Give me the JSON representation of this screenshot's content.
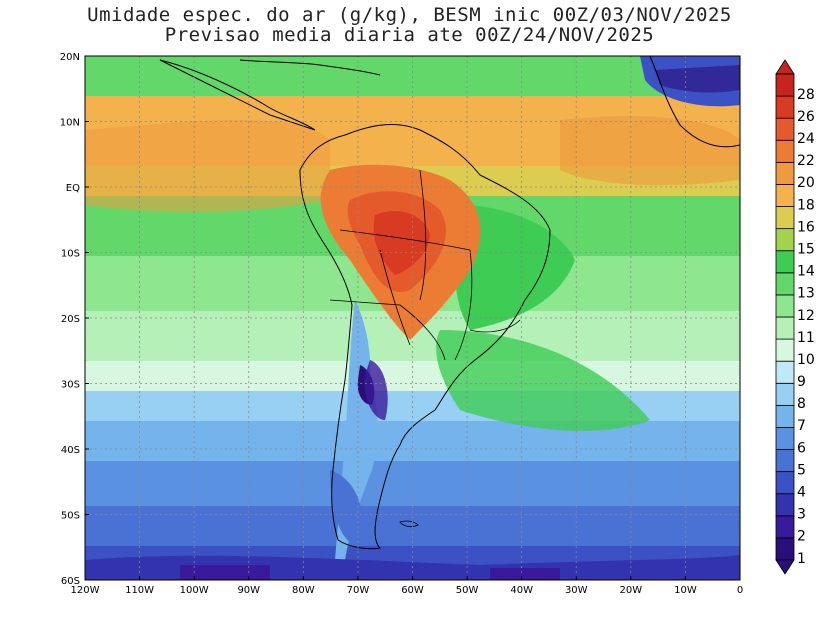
{
  "title_line1": "Umidade espec. do ar (g/kg), BESM inic 00Z/03/NOV/2025",
  "title_line2": "Previsao media diaria ate 00Z/24/NOV/2025",
  "lat_labels": [
    "20N",
    "10N",
    "EQ",
    "10S",
    "20S",
    "30S",
    "40S",
    "50S",
    "60S"
  ],
  "lon_labels": [
    "120W",
    "110W",
    "100W",
    "90W",
    "80W",
    "70W",
    "60W",
    "50W",
    "40W",
    "30W",
    "20W",
    "10W",
    "0"
  ],
  "colorbar": {
    "levels": [
      "1",
      "2",
      "3",
      "4",
      "5",
      "6",
      "7",
      "8",
      "9",
      "10",
      "11",
      "12",
      "13",
      "14",
      "15",
      "16",
      "18",
      "20",
      "22",
      "24",
      "26",
      "28"
    ],
    "colors": [
      "#2a0f7a",
      "#3a1a9c",
      "#3333b0",
      "#3c52c4",
      "#4a72d4",
      "#5a91e0",
      "#74b3eb",
      "#98d0f3",
      "#bfe8f8",
      "#d8f7e0",
      "#b5f0b8",
      "#8ee68e",
      "#62d86a",
      "#3fcc55",
      "#a3d24e",
      "#dccd50",
      "#f3b24c",
      "#ef9a3e",
      "#ec7b33",
      "#e55a2a",
      "#d83a22",
      "#c7231f"
    ]
  },
  "map": {
    "region": "South America and adjacent oceans",
    "lon_range": [
      -120,
      0
    ],
    "lat_range": [
      -60,
      20
    ],
    "variable": "specific humidity"
  }
}
